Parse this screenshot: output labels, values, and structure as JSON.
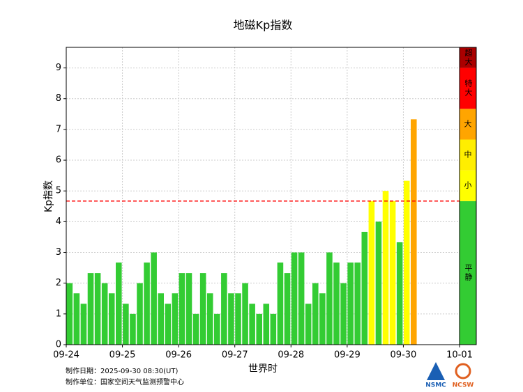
{
  "chart_data": {
    "type": "bar",
    "title": "地磁Kp指数",
    "y_label": "Kp指数",
    "x_label": "世界时",
    "values": [
      2,
      1.67,
      1.33,
      2.33,
      2.33,
      2,
      1.67,
      2.67,
      1.33,
      1,
      2,
      2.67,
      3,
      1.67,
      1.33,
      1.67,
      2.33,
      2.33,
      1,
      2.33,
      1.67,
      1,
      2.33,
      1.67,
      1.67,
      2,
      1.33,
      1,
      1.33,
      1,
      2.67,
      2.33,
      3,
      3,
      1.33,
      2,
      1.67,
      3,
      2.67,
      2,
      2.67,
      2.67,
      3.67,
      4.67,
      4,
      5,
      4.67,
      3.33,
      5.33,
      7.33
    ],
    "xlim": [
      0,
      7
    ],
    "xticks": [
      {
        "value": 0,
        "label": "09-24"
      },
      {
        "value": 1,
        "label": "09-25"
      },
      {
        "value": 2,
        "label": "09-26"
      },
      {
        "value": 3,
        "label": "09-27"
      },
      {
        "value": 4,
        "label": "09-28"
      },
      {
        "value": 5,
        "label": "09-29"
      },
      {
        "value": 6,
        "label": "09-30"
      },
      {
        "value": 7,
        "label": "10-01"
      }
    ],
    "ylim": [
      0,
      9.67
    ],
    "yticks": [
      0,
      1,
      2,
      3,
      4,
      5,
      6,
      7,
      8,
      9
    ],
    "grid": true,
    "threshold": 4.67,
    "threshold_color": "#ff0000",
    "scale_bands": [
      {
        "from": 0,
        "to": 4.67,
        "label": "平静",
        "color": "#33cc33"
      },
      {
        "from": 4.67,
        "to": 5.67,
        "label": "小",
        "color": "#ffff00"
      },
      {
        "from": 5.67,
        "to": 6.67,
        "label": "中",
        "color": "#ffee00"
      },
      {
        "from": 6.67,
        "to": 7.67,
        "label": "大",
        "color": "#ffa500"
      },
      {
        "from": 7.67,
        "to": 9,
        "label": "特大",
        "color": "#ff0000"
      },
      {
        "from": 9,
        "to": 9.67,
        "label": "超大",
        "color": "#aa0000"
      }
    ]
  },
  "footer": {
    "date": "制作日期：2025-09-30 08:30(UT)",
    "org": "制作单位：国家空间天气监测预警中心",
    "logo1": "NSMC",
    "logo2": "NCSW"
  }
}
